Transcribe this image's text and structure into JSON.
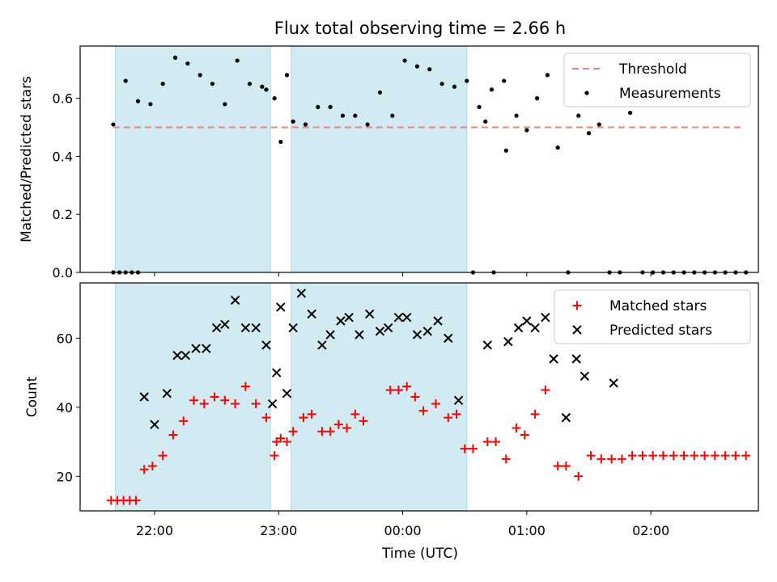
{
  "figure": {
    "title": "Flux total observing time = 2.66 h"
  },
  "chart_data": [
    {
      "type": "scatter",
      "panel": "top",
      "ylabel": "Matched/Predicted stars",
      "xlabel": "",
      "x_unit": "time (UTC) across midnight, ticks shown as HH:MM",
      "xlim": [
        "21:24",
        "02:52"
      ],
      "ylim": [
        0,
        0.78
      ],
      "yticks": [
        0.0,
        0.2,
        0.4,
        0.6
      ],
      "ytick_labels": [
        "0.0",
        "0.2",
        "0.4",
        "0.6"
      ],
      "shaded_intervals": [
        [
          "21:41",
          "22:56"
        ],
        [
          "23:06",
          "00:31"
        ]
      ],
      "shade_color": "#add8e6",
      "legend": {
        "placement": "upper right",
        "entries": [
          "Threshold",
          "Measurements"
        ]
      },
      "threshold": {
        "name": "Threshold",
        "value": 0.5,
        "x_range": [
          "21:40",
          "02:45"
        ],
        "color": "#f08080",
        "style": "dashed"
      },
      "series": [
        {
          "name": "Measurements",
          "color": "#000000",
          "marker": "dot",
          "points": [
            [
              "21:40",
              0.0
            ],
            [
              "21:43",
              0.0
            ],
            [
              "21:46",
              0.0
            ],
            [
              "21:49",
              0.0
            ],
            [
              "21:52",
              0.0
            ],
            [
              "21:40",
              0.51
            ],
            [
              "21:46",
              0.66
            ],
            [
              "21:52",
              0.59
            ],
            [
              "21:58",
              0.58
            ],
            [
              "22:04",
              0.65
            ],
            [
              "22:10",
              0.74
            ],
            [
              "22:16",
              0.72
            ],
            [
              "22:22",
              0.68
            ],
            [
              "22:28",
              0.65
            ],
            [
              "22:34",
              0.58
            ],
            [
              "22:40",
              0.73
            ],
            [
              "22:46",
              0.65
            ],
            [
              "22:52",
              0.64
            ],
            [
              "22:58",
              0.6
            ],
            [
              "23:04",
              0.68
            ],
            [
              "22:54",
              0.63
            ],
            [
              "23:01",
              0.45
            ],
            [
              "23:07",
              0.52
            ],
            [
              "23:13",
              0.51
            ],
            [
              "23:19",
              0.57
            ],
            [
              "23:25",
              0.57
            ],
            [
              "23:31",
              0.54
            ],
            [
              "23:37",
              0.54
            ],
            [
              "23:43",
              0.51
            ],
            [
              "23:49",
              0.62
            ],
            [
              "23:55",
              0.54
            ],
            [
              "00:01",
              0.73
            ],
            [
              "00:07",
              0.71
            ],
            [
              "00:13",
              0.7
            ],
            [
              "00:19",
              0.65
            ],
            [
              "00:25",
              0.64
            ],
            [
              "00:31",
              0.66
            ],
            [
              "00:37",
              0.57
            ],
            [
              "00:43",
              0.63
            ],
            [
              "00:49",
              0.66
            ],
            [
              "00:34",
              0.0
            ],
            [
              "00:40",
              0.52
            ],
            [
              "00:44",
              0.0
            ],
            [
              "00:50",
              0.42
            ],
            [
              "00:55",
              0.54
            ],
            [
              "01:00",
              0.49
            ],
            [
              "01:05",
              0.6
            ],
            [
              "01:10",
              0.68
            ],
            [
              "01:15",
              0.43
            ],
            [
              "01:20",
              0.0
            ],
            [
              "01:25",
              0.54
            ],
            [
              "01:30",
              0.48
            ],
            [
              "01:35",
              0.51
            ],
            [
              "01:40",
              0.0
            ],
            [
              "01:45",
              0.0
            ],
            [
              "01:50",
              0.55
            ],
            [
              "01:56",
              0.0
            ],
            [
              "02:01",
              0.0
            ],
            [
              "02:06",
              0.0
            ],
            [
              "02:11",
              0.0
            ],
            [
              "02:16",
              0.0
            ],
            [
              "02:21",
              0.0
            ],
            [
              "02:26",
              0.0
            ],
            [
              "02:31",
              0.0
            ],
            [
              "02:36",
              0.0
            ],
            [
              "02:41",
              0.0
            ],
            [
              "02:46",
              0.0
            ]
          ]
        }
      ]
    },
    {
      "type": "scatter",
      "panel": "bottom",
      "ylabel": "Count",
      "xlabel": "Time (UTC)",
      "x_unit": "time (UTC) across midnight, ticks shown as HH:MM",
      "xlim": [
        "21:24",
        "02:52"
      ],
      "ylim": [
        10,
        76
      ],
      "yticks": [
        20,
        40,
        60
      ],
      "ytick_labels": [
        "20",
        "40",
        "60"
      ],
      "xticks": [
        "22:00",
        "23:00",
        "00:00",
        "01:00",
        "02:00"
      ],
      "xtick_labels": [
        "22:00",
        "23:00",
        "00:00",
        "01:00",
        "02:00"
      ],
      "shaded_intervals": [
        [
          "21:41",
          "22:56"
        ],
        [
          "23:06",
          "00:31"
        ]
      ],
      "shade_color": "#add8e6",
      "legend": {
        "placement": "upper right",
        "entries": [
          "Matched stars",
          "Predicted stars"
        ]
      },
      "series": [
        {
          "name": "Matched stars",
          "color": "#ff0000",
          "marker": "plus",
          "points": [
            [
              "21:39",
              13
            ],
            [
              "21:42",
              13
            ],
            [
              "21:45",
              13
            ],
            [
              "21:48",
              13
            ],
            [
              "21:51",
              13
            ],
            [
              "21:55",
              22
            ],
            [
              "21:59",
              23
            ],
            [
              "22:04",
              26
            ],
            [
              "22:09",
              32
            ],
            [
              "22:14",
              36
            ],
            [
              "22:19",
              42
            ],
            [
              "22:24",
              41
            ],
            [
              "22:29",
              43
            ],
            [
              "22:34",
              42
            ],
            [
              "22:39",
              41
            ],
            [
              "22:44",
              46
            ],
            [
              "22:49",
              41
            ],
            [
              "22:54",
              37
            ],
            [
              "22:59",
              30
            ],
            [
              "23:04",
              30
            ],
            [
              "22:58",
              26
            ],
            [
              "23:01",
              31
            ],
            [
              "23:07",
              33
            ],
            [
              "23:12",
              37
            ],
            [
              "23:16",
              38
            ],
            [
              "23:21",
              33
            ],
            [
              "23:25",
              33
            ],
            [
              "23:29",
              35
            ],
            [
              "23:33",
              34
            ],
            [
              "23:37",
              38
            ],
            [
              "23:41",
              36
            ],
            [
              "23:54",
              45
            ],
            [
              "23:58",
              45
            ],
            [
              "00:02",
              46
            ],
            [
              "00:06",
              43
            ],
            [
              "00:10",
              39
            ],
            [
              "00:16",
              41
            ],
            [
              "00:22",
              37
            ],
            [
              "00:26",
              38
            ],
            [
              "00:30",
              28
            ],
            [
              "00:34",
              28
            ],
            [
              "00:41",
              30
            ],
            [
              "00:45",
              30
            ],
            [
              "00:50",
              25
            ],
            [
              "00:55",
              34
            ],
            [
              "00:59",
              32
            ],
            [
              "01:04",
              38
            ],
            [
              "01:09",
              45
            ],
            [
              "01:15",
              23
            ],
            [
              "01:19",
              23
            ],
            [
              "01:25",
              20
            ],
            [
              "01:31",
              26
            ],
            [
              "01:36",
              25
            ],
            [
              "01:41",
              25
            ],
            [
              "01:46",
              25
            ],
            [
              "01:51",
              26
            ],
            [
              "01:56",
              26
            ],
            [
              "02:01",
              26
            ],
            [
              "02:06",
              26
            ],
            [
              "02:11",
              26
            ],
            [
              "02:16",
              26
            ],
            [
              "02:21",
              26
            ],
            [
              "02:26",
              26
            ],
            [
              "02:31",
              26
            ],
            [
              "02:36",
              26
            ],
            [
              "02:41",
              26
            ],
            [
              "02:46",
              26
            ]
          ]
        },
        {
          "name": "Predicted stars",
          "color": "#000000",
          "marker": "cross",
          "points": [
            [
              "21:55",
              43
            ],
            [
              "22:00",
              35
            ],
            [
              "22:06",
              44
            ],
            [
              "22:11",
              55
            ],
            [
              "22:15",
              55
            ],
            [
              "22:20",
              57
            ],
            [
              "22:25",
              57
            ],
            [
              "22:30",
              63
            ],
            [
              "22:34",
              64
            ],
            [
              "22:39",
              71
            ],
            [
              "22:44",
              63
            ],
            [
              "22:49",
              63
            ],
            [
              "22:54",
              58
            ],
            [
              "22:59",
              50
            ],
            [
              "23:04",
              44
            ],
            [
              "22:57",
              41
            ],
            [
              "23:01",
              69
            ],
            [
              "23:07",
              63
            ],
            [
              "23:11",
              73
            ],
            [
              "23:16",
              67
            ],
            [
              "23:21",
              58
            ],
            [
              "23:25",
              61
            ],
            [
              "23:30",
              65
            ],
            [
              "23:34",
              66
            ],
            [
              "23:39",
              61
            ],
            [
              "23:44",
              67
            ],
            [
              "23:49",
              62
            ],
            [
              "23:53",
              63
            ],
            [
              "23:58",
              66
            ],
            [
              "00:02",
              66
            ],
            [
              "00:07",
              61
            ],
            [
              "00:12",
              62
            ],
            [
              "00:17",
              65
            ],
            [
              "00:22",
              60
            ],
            [
              "00:27",
              42
            ],
            [
              "00:41",
              58
            ],
            [
              "00:51",
              59
            ],
            [
              "00:56",
              63
            ],
            [
              "01:00",
              65
            ],
            [
              "01:04",
              63
            ],
            [
              "01:09",
              66
            ],
            [
              "01:13",
              54
            ],
            [
              "01:19",
              37
            ],
            [
              "01:24",
              54
            ],
            [
              "01:28",
              49
            ],
            [
              "01:42",
              47
            ]
          ]
        }
      ]
    }
  ]
}
